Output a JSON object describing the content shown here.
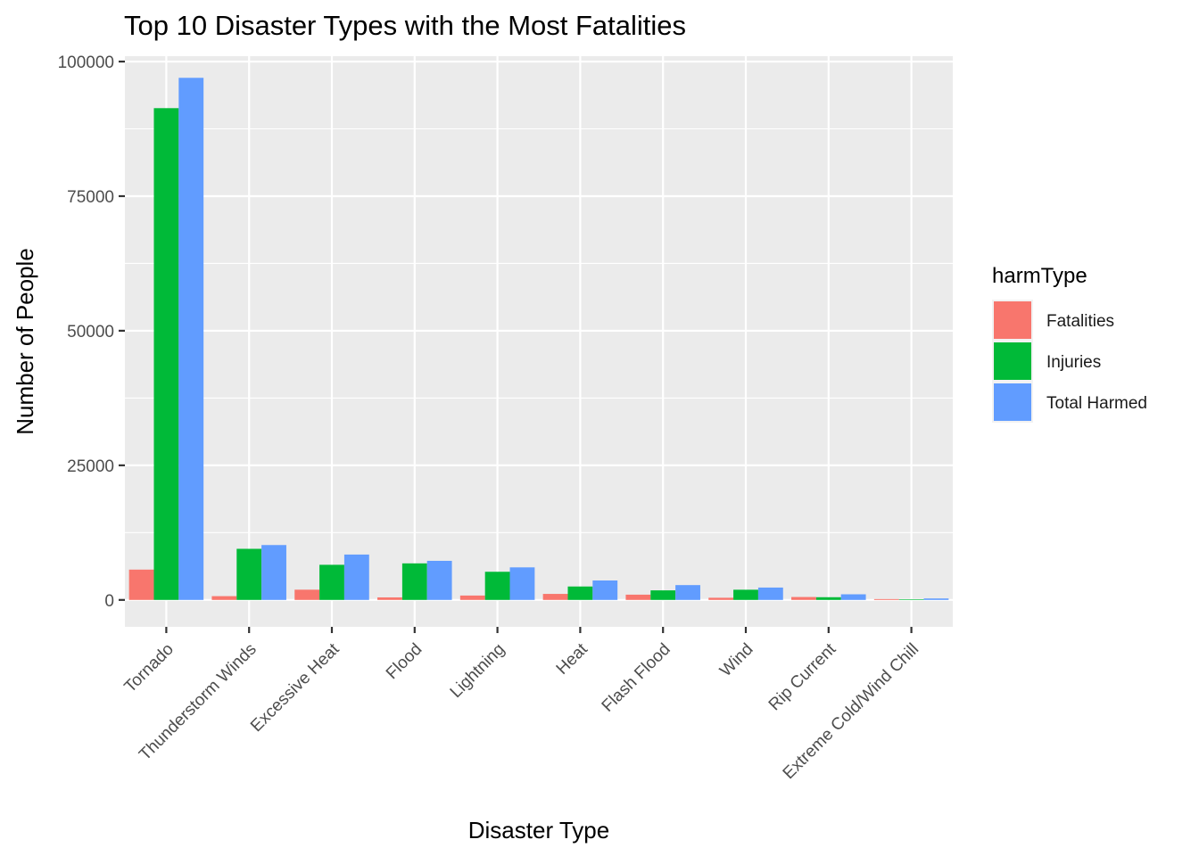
{
  "chart_data": {
    "type": "bar",
    "title": "Top 10 Disaster Types with the Most Fatalities",
    "xlabel": "Disaster Type",
    "ylabel": "Number of People",
    "ylim": [
      -5000,
      101000
    ],
    "yticks": [
      0,
      25000,
      50000,
      75000,
      100000
    ],
    "ytick_labels": [
      "0",
      "25000",
      "50000",
      "75000",
      "100000"
    ],
    "grid": true,
    "legend_position": "right",
    "legend_title": "harmType",
    "categories": [
      "Tornado",
      "Thunderstorm Winds",
      "Excessive Heat",
      "Flood",
      "Lightning",
      "Heat",
      "Flash Flood",
      "Wind",
      "Rip Current",
      "Extreme Cold/Wind Chill"
    ],
    "series": [
      {
        "name": "Fatalities",
        "color": "#F8766D",
        "values": [
          5633,
          701,
          1903,
          470,
          817,
          1118,
          978,
          403,
          542,
          160
        ]
      },
      {
        "name": "Injuries",
        "color": "#00BA38",
        "values": [
          91346,
          9493,
          6525,
          6789,
          5230,
          2494,
          1777,
          1894,
          503,
          108
        ]
      },
      {
        "name": "Total Harmed",
        "color": "#619CFF",
        "values": [
          96979,
          10194,
          8428,
          7259,
          6047,
          3612,
          2755,
          2297,
          1045,
          268
        ]
      }
    ]
  }
}
